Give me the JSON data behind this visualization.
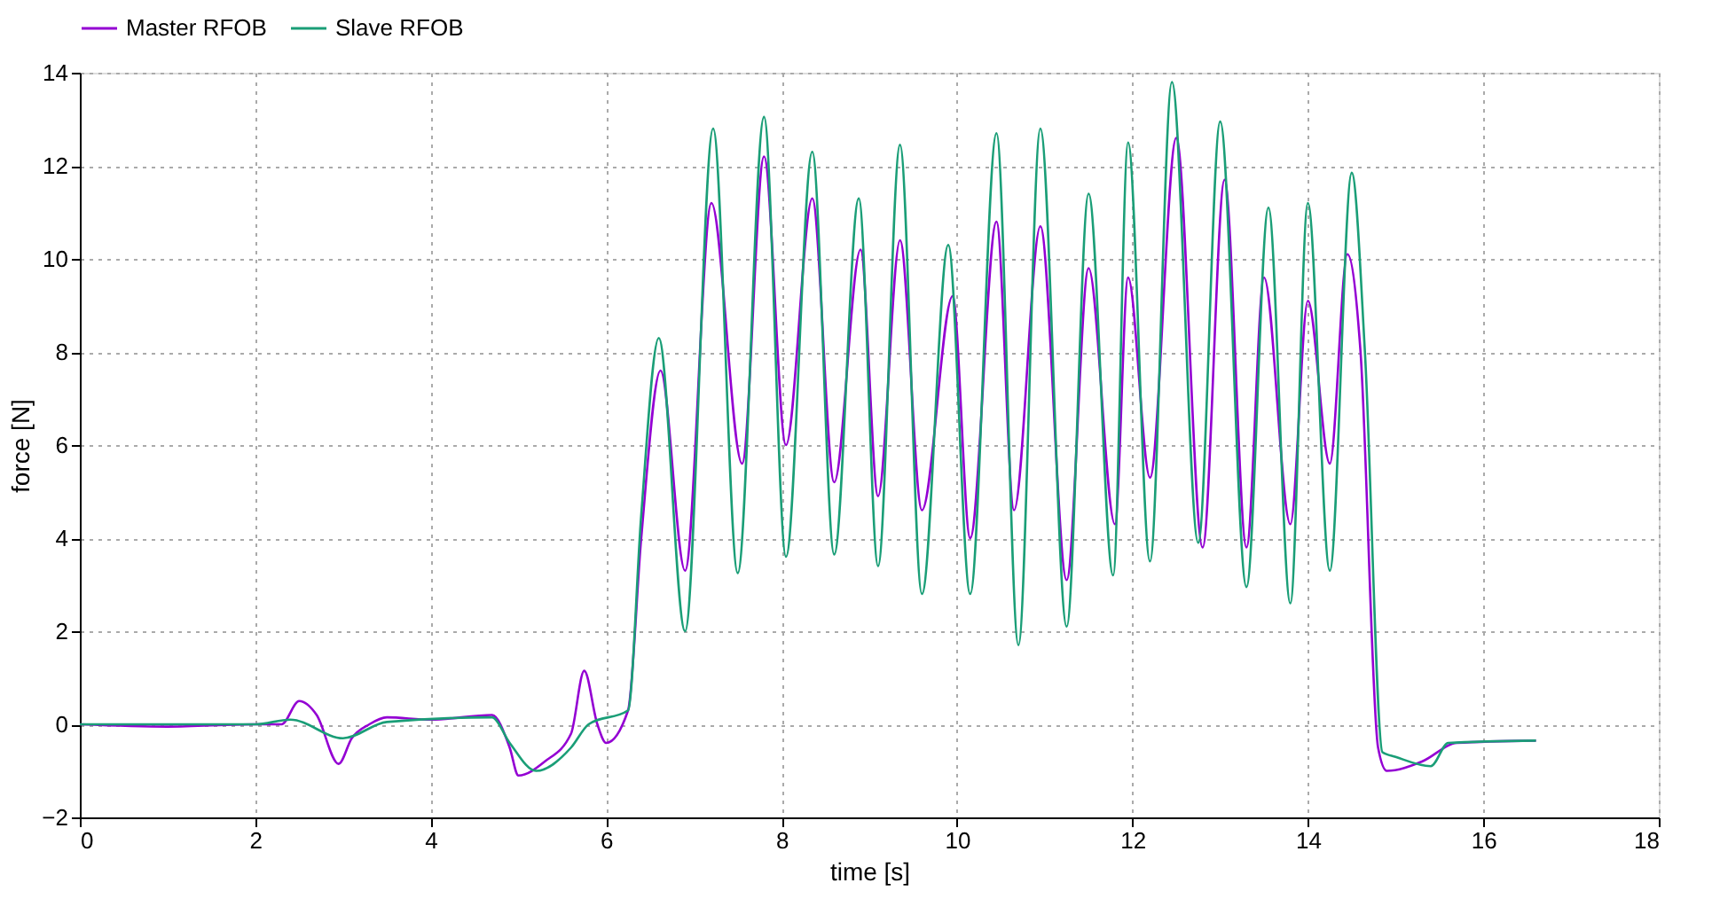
{
  "chart_data": {
    "type": "line",
    "xlabel": "time [s]",
    "ylabel": "force [N]",
    "xlim": [
      0,
      18
    ],
    "ylim": [
      -2,
      14
    ],
    "xticks": [
      0,
      2,
      4,
      6,
      8,
      10,
      12,
      14,
      16,
      18
    ],
    "yticks": [
      -2,
      0,
      2,
      4,
      6,
      8,
      10,
      12,
      14
    ],
    "grid": true,
    "legend": "top",
    "marker": "none",
    "line_style": "solid",
    "series": [
      {
        "name": "Master RFOB",
        "color": "#9400d3",
        "x": [
          0,
          1,
          2,
          2.3,
          2.5,
          2.7,
          2.95,
          3.1,
          3.3,
          3.5,
          4.0,
          4.7,
          4.9,
          5.0,
          5.3,
          5.6,
          5.75,
          5.9,
          6.0,
          6.25,
          6.4,
          6.62,
          6.9,
          7.2,
          7.55,
          7.8,
          8.05,
          8.35,
          8.6,
          8.9,
          9.1,
          9.35,
          9.6,
          9.95,
          10.15,
          10.45,
          10.65,
          10.95,
          11.25,
          11.5,
          11.8,
          11.95,
          12.2,
          12.5,
          12.8,
          13.05,
          13.3,
          13.5,
          13.8,
          14.0,
          14.25,
          14.45,
          14.6,
          14.8,
          14.9,
          15.3,
          15.7,
          16.6
        ],
        "values": [
          0,
          -0.05,
          0,
          0,
          0.5,
          0.2,
          -0.85,
          -0.3,
          0,
          0.15,
          0.1,
          0.2,
          -0.5,
          -1.1,
          -0.8,
          -0.2,
          1.15,
          0,
          -0.4,
          0.3,
          4.0,
          7.6,
          3.3,
          11.2,
          5.6,
          12.2,
          6.0,
          11.3,
          5.2,
          10.2,
          4.9,
          10.4,
          4.6,
          9.2,
          4.0,
          10.8,
          4.6,
          10.7,
          3.1,
          9.8,
          4.3,
          9.6,
          5.3,
          12.6,
          3.8,
          11.7,
          3.8,
          9.6,
          4.3,
          9.1,
          5.6,
          10.1,
          8.0,
          -0.5,
          -1.0,
          -0.8,
          -0.4,
          -0.35
        ]
      },
      {
        "name": "Slave RFOB",
        "color": "#1a9e77",
        "x": [
          0,
          1,
          2,
          2.4,
          3.0,
          3.5,
          4.7,
          4.9,
          5.2,
          5.6,
          5.8,
          6.25,
          6.4,
          6.6,
          6.9,
          7.22,
          7.5,
          7.8,
          8.05,
          8.35,
          8.6,
          8.88,
          9.1,
          9.35,
          9.6,
          9.9,
          10.15,
          10.45,
          10.7,
          10.95,
          11.25,
          11.5,
          11.78,
          11.95,
          12.2,
          12.45,
          12.75,
          13.0,
          13.3,
          13.55,
          13.8,
          14.0,
          14.25,
          14.5,
          14.65,
          14.85,
          15.0,
          15.4,
          15.6,
          16.6
        ],
        "values": [
          0,
          0,
          0,
          0.1,
          -0.3,
          0.05,
          0.15,
          -0.4,
          -1.0,
          -0.5,
          0,
          0.3,
          4.5,
          8.3,
          2.0,
          12.8,
          3.25,
          13.05,
          3.6,
          12.3,
          3.65,
          11.3,
          3.4,
          12.45,
          2.8,
          10.3,
          2.8,
          12.7,
          1.7,
          12.8,
          2.1,
          11.4,
          3.2,
          12.5,
          3.5,
          13.8,
          3.9,
          12.95,
          2.95,
          11.1,
          2.6,
          11.2,
          3.3,
          11.85,
          8.0,
          -0.6,
          -0.7,
          -0.9,
          -0.4,
          -0.35
        ]
      }
    ]
  }
}
